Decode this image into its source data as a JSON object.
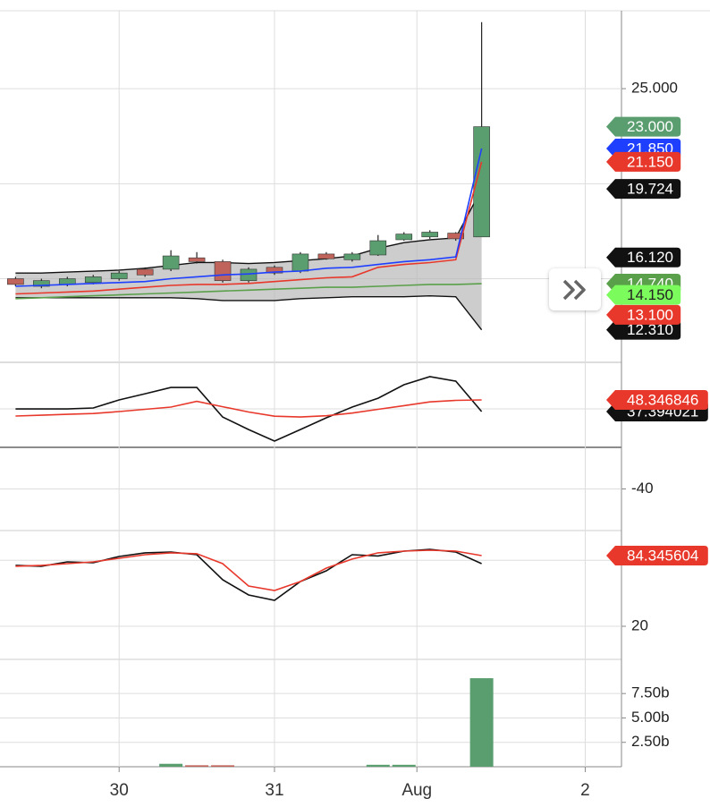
{
  "chart_data": [
    {
      "type": "candlestick",
      "open": [
        15.0,
        14.6,
        14.7,
        14.8,
        15.0,
        15.5,
        15.5,
        16.1,
        15.9,
        14.9,
        15.6,
        15.4,
        16.3,
        16.0,
        16.25,
        17.05,
        17.2,
        17.4,
        17.2
      ],
      "high": [
        15.1,
        15.0,
        15.1,
        15.2,
        15.4,
        15.6,
        16.5,
        16.4,
        16.0,
        15.6,
        15.7,
        16.4,
        16.4,
        16.4,
        17.3,
        17.45,
        17.55,
        17.45,
        28.5
      ],
      "low": [
        14.6,
        14.5,
        14.6,
        14.7,
        14.9,
        15.1,
        15.4,
        15.8,
        14.8,
        14.8,
        15.2,
        15.3,
        16.0,
        15.9,
        16.2,
        17.0,
        17.1,
        17.0,
        17.2
      ],
      "close": [
        14.7,
        14.9,
        15.0,
        15.1,
        15.3,
        15.2,
        16.2,
        15.9,
        14.9,
        15.5,
        15.3,
        16.3,
        16.05,
        16.3,
        17.0,
        17.35,
        17.45,
        17.1,
        23.0
      ],
      "up_color": "#5a9e6f",
      "down_color": "#c0635a",
      "band": {
        "color": "#b8b8b8",
        "upper": [
          15.3,
          15.3,
          15.35,
          15.4,
          15.45,
          15.55,
          15.7,
          15.85,
          15.85,
          15.8,
          15.85,
          15.95,
          16.05,
          16.2,
          16.6,
          16.9,
          17.05,
          17.15,
          19.72
        ],
        "lower": [
          14.0,
          14.0,
          14.0,
          14.0,
          14.0,
          14.0,
          14.0,
          13.95,
          13.85,
          13.85,
          13.85,
          13.95,
          14.0,
          14.05,
          14.05,
          14.05,
          14.1,
          14.05,
          12.31
        ]
      },
      "series": [
        {
          "color": "#5aa04a",
          "values": [
            13.95,
            14.0,
            14.05,
            14.1,
            14.15,
            14.2,
            14.25,
            14.3,
            14.35,
            14.4,
            14.45,
            14.5,
            14.55,
            14.55,
            14.6,
            14.65,
            14.7,
            14.7,
            14.74
          ]
        },
        {
          "color": "#e8382b",
          "values": [
            14.2,
            14.25,
            14.3,
            14.35,
            14.45,
            14.55,
            14.65,
            14.7,
            14.7,
            14.75,
            14.85,
            14.95,
            15.05,
            15.1,
            15.6,
            15.75,
            15.85,
            16.0,
            21.15
          ]
        },
        {
          "color": "#1f3fff",
          "values": [
            14.6,
            14.65,
            14.7,
            14.75,
            14.8,
            14.85,
            15.0,
            15.1,
            15.2,
            15.25,
            15.35,
            15.4,
            15.55,
            15.6,
            15.75,
            15.9,
            16.0,
            16.15,
            21.85
          ]
        }
      ],
      "xlim": [
        -0.6,
        23.4
      ],
      "ylim": [
        10.6,
        29.1
      ],
      "yticks": [
        {
          "value": 15,
          "label": null
        },
        {
          "value": 20,
          "label": null
        },
        {
          "value": 25,
          "label": "25.000"
        }
      ],
      "price_labels": [
        {
          "value": 21.85,
          "label": "21.850",
          "color": "#1f3fff"
        },
        {
          "value": 23.0,
          "label": "23.000",
          "color": "#5a9e6f"
        },
        {
          "value": 19.724,
          "label": "19.724",
          "color": "#111111"
        },
        {
          "value": 21.15,
          "label": "21.150",
          "color": "#e8382b"
        },
        {
          "value": 12.31,
          "label": "12.310",
          "color": "#111111"
        },
        {
          "value": 14.74,
          "label": "14.740",
          "color": "#5aa04a"
        },
        {
          "value": 14.15,
          "label": "14.150",
          "color": "#7cfc5c",
          "text_color": "#222222"
        },
        {
          "value": 16.12,
          "label": "16.120",
          "color": "#111111"
        },
        {
          "value": 13.1,
          "label": "13.100",
          "color": "#e8382b"
        }
      ]
    },
    {
      "type": "line",
      "series": [
        {
          "color": "#111111",
          "values": [
            39.9,
            39.9,
            39.9,
            40.8,
            48.4,
            54.2,
            60.1,
            60.1,
            32.3,
            20.5,
            9.6,
            20.5,
            31.5,
            41.6,
            50.0,
            62.7,
            70.3,
            66.1,
            37.39
          ]
        },
        {
          "color": "#e8382b",
          "values": [
            33.2,
            34.0,
            34.8,
            35.6,
            37.4,
            39.5,
            41.6,
            47.0,
            42.0,
            37.0,
            33.0,
            32.3,
            33.5,
            36.0,
            39.5,
            43.0,
            46.5,
            48.0,
            48.35
          ]
        }
      ],
      "xlim": [
        -0.6,
        23.4
      ],
      "ylim": [
        3.7,
        82.1
      ],
      "yticks": [
        {
          "value": 40,
          "label": null
        }
      ],
      "price_labels": [
        {
          "value": 37.394021,
          "label": "37.394021",
          "color": "#111111"
        },
        {
          "value": 48.346846,
          "label": "48.346846",
          "color": "#e8382b"
        }
      ]
    },
    {
      "type": "line",
      "series": [],
      "xlim": [
        -0.6,
        23.4
      ],
      "ylim": [
        -80,
        0
      ],
      "yticks": [
        -40
      ],
      "price_labels": []
    },
    {
      "type": "line",
      "series": [
        {
          "color": "#111111",
          "values": [
            75.4,
            74.6,
            78.6,
            77.8,
            83.5,
            86.8,
            87.6,
            85.1,
            62.3,
            48.5,
            43.6,
            60.7,
            70.5,
            85.1,
            84.0,
            88.4,
            90.0,
            87.6,
            77.0
          ]
        },
        {
          "color": "#e8382b",
          "values": [
            74.6,
            75.4,
            77.0,
            78.6,
            81.9,
            85.1,
            86.8,
            86.0,
            77.0,
            56.6,
            52.6,
            60.7,
            72.9,
            81.1,
            86.8,
            88.4,
            89.2,
            88.4,
            84.35
          ]
        }
      ],
      "xlim": [
        -0.6,
        23.4
      ],
      "ylim": [
        -10.1,
        107.1
      ],
      "yticks": [
        20,
        {
          "value": 80,
          "label": null
        }
      ],
      "price_labels": [
        {
          "value": 84.345604,
          "label": "84.345604",
          "color": "#e8382b"
        }
      ]
    },
    {
      "type": "bar",
      "values": [
        0,
        0,
        0,
        0,
        0,
        0,
        0.3,
        0.15,
        0.15,
        0,
        0,
        0,
        0,
        0,
        0.2,
        0.2,
        0,
        0,
        9.07
      ],
      "colors": [
        "#c0635a",
        "#5a9e6f",
        "#5a9e6f",
        "#5a9e6f",
        "#5a9e6f",
        "#c0635a",
        "#5a9e6f",
        "#c0635a",
        "#c0635a",
        "#5a9e6f",
        "#c0635a",
        "#5a9e6f",
        "#c0635a",
        "#5a9e6f",
        "#5a9e6f",
        "#5a9e6f",
        "#5a9e6f",
        "#c0635a",
        "#5a9e6f"
      ],
      "xlim": [
        -0.6,
        23.4
      ],
      "ylim": [
        0,
        11.0
      ],
      "yticks": [
        {
          "value": 2.5,
          "label": "2.50b"
        },
        {
          "value": 5.0,
          "label": "5.00b"
        },
        {
          "value": 7.5,
          "label": "7.50b"
        }
      ],
      "xticks": [
        {
          "value": 4,
          "label": "30"
        },
        {
          "value": 10,
          "label": "31"
        },
        {
          "value": 15.5,
          "label": "Aug"
        },
        {
          "value": 22,
          "label": "2"
        }
      ],
      "price_labels": []
    }
  ]
}
